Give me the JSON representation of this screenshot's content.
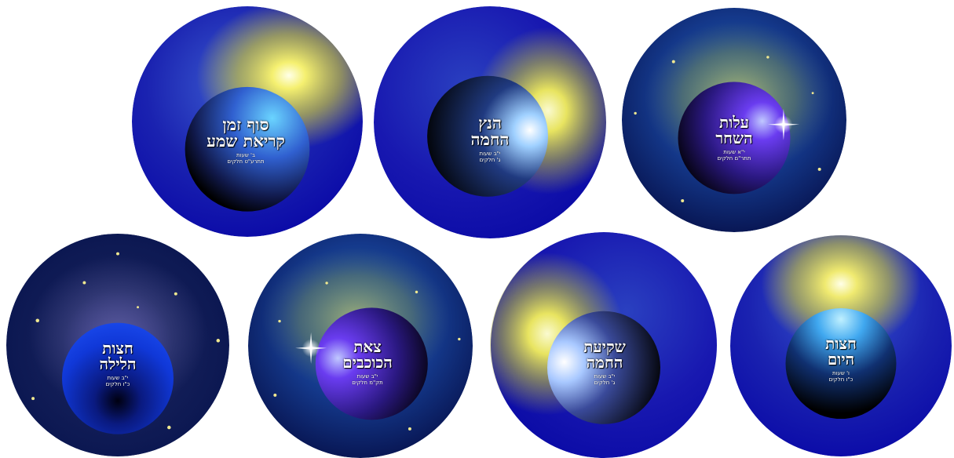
{
  "dials": [
    {
      "id": "sof-zman",
      "title_lines": [
        "סוף זמן",
        "קריאת שמע"
      ],
      "sub_lines": [
        "ב' שעות",
        "תתרע\"ט חלקים"
      ],
      "colors": {
        "outer": "#1414b4",
        "inner": "#3a7be8",
        "glow": "#d8d640"
      }
    },
    {
      "id": "hanetz",
      "title_lines": [
        "הנץ",
        "החמה"
      ],
      "sub_lines": [
        "י\"ב שעות",
        "ג' חלקים"
      ],
      "colors": {
        "outer": "#1212b0",
        "inner": "#203a70",
        "glow": "#cfcf3a"
      }
    },
    {
      "id": "alot",
      "title_lines": [
        "עלות",
        "השחר"
      ],
      "sub_lines": [
        "י\"א שעות",
        "תתר\"ם חלקים"
      ],
      "colors": {
        "outer": "#0d2a8a",
        "inner": "#5b2be0",
        "glow": "#9aa860"
      }
    },
    {
      "id": "chatzot-laila",
      "title_lines": [
        "חצות",
        "הלילה"
      ],
      "sub_lines": [
        "י\"ב שעות",
        "כ\"ו חלקים"
      ],
      "colors": {
        "outer": "#0a1a60",
        "inner": "#1035d0",
        "glow": "#4a4a90"
      }
    },
    {
      "id": "tzet",
      "title_lines": [
        "צאת",
        "הכוכבים"
      ],
      "sub_lines": [
        "י\"ב שעות",
        "תק\"מ חלקים"
      ],
      "colors": {
        "outer": "#0d2a8a",
        "inner": "#5b2be0",
        "glow": "#9aa860"
      }
    },
    {
      "id": "shkia",
      "title_lines": [
        "שקיעת",
        "החמה"
      ],
      "sub_lines": [
        "י\"ב שעות",
        "ג' חלקים"
      ],
      "colors": {
        "outer": "#1212b0",
        "inner": "#4a60c0",
        "glow": "#cfcf3a"
      }
    },
    {
      "id": "chatzot-yom",
      "title_lines": [
        "חצות",
        "היום"
      ],
      "sub_lines": [
        "ו' שעות",
        "כ\"ו חלקים"
      ],
      "colors": {
        "outer": "#1414b4",
        "inner": "#3aa0f0",
        "glow": "#e0d840"
      }
    }
  ]
}
